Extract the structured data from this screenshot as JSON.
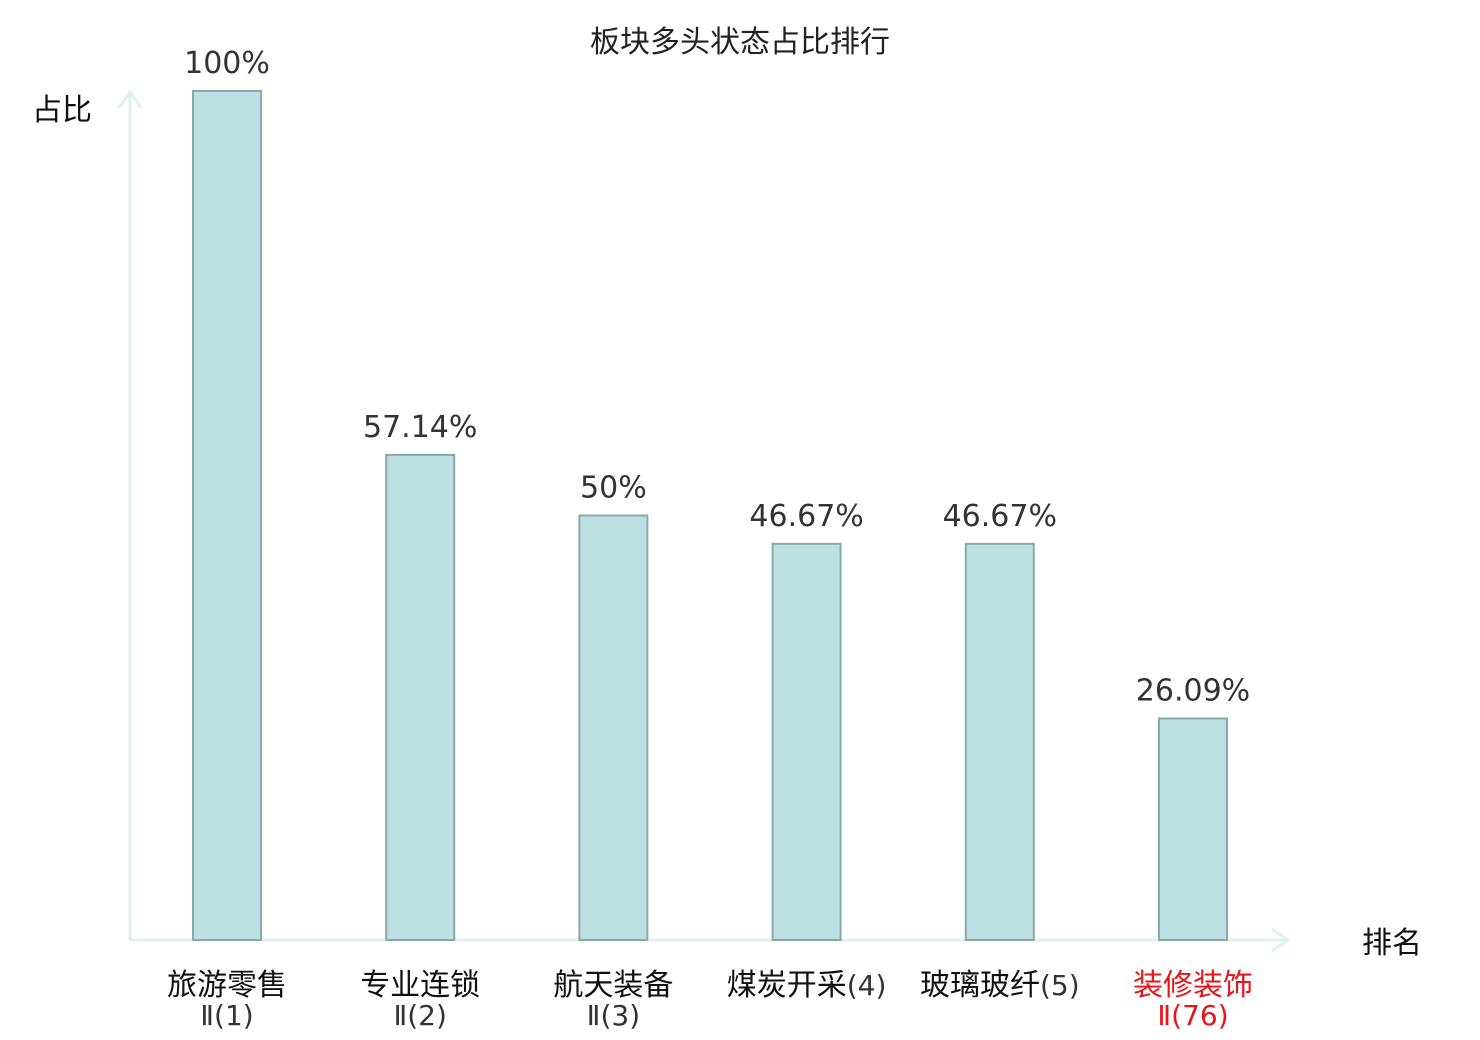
{
  "chart_data": {
    "type": "bar",
    "title": "板块多头状态占比排行",
    "ylabel": "占比",
    "xlabel": "排名",
    "ylim": [
      0,
      100
    ],
    "grid": false,
    "categories": [
      {
        "name": "旅游零售",
        "rank": "Ⅱ(1)",
        "highlight": false
      },
      {
        "name": "专业连锁",
        "rank": "Ⅱ(2)",
        "highlight": false
      },
      {
        "name": "航天装备",
        "rank": "Ⅱ(3)",
        "highlight": false
      },
      {
        "name": "煤炭开采",
        "rank": "(4)",
        "highlight": false
      },
      {
        "name": "玻璃玻纤",
        "rank": "(5)",
        "highlight": false
      },
      {
        "name": "装修装饰",
        "rank": "Ⅱ(76)",
        "highlight": true
      }
    ],
    "values": [
      100,
      57.14,
      50,
      46.67,
      46.67,
      26.09
    ],
    "value_labels": [
      "100%",
      "57.14%",
      "50%",
      "46.67%",
      "46.67%",
      "26.09%"
    ]
  },
  "colors": {
    "bar_fill": "#bde0e2",
    "bar_stroke": "#8aa8aa",
    "axis": "#e0f2ef",
    "label_normal": "#111111",
    "rank_normal": "#333333",
    "label_highlight": "#e8141b"
  }
}
